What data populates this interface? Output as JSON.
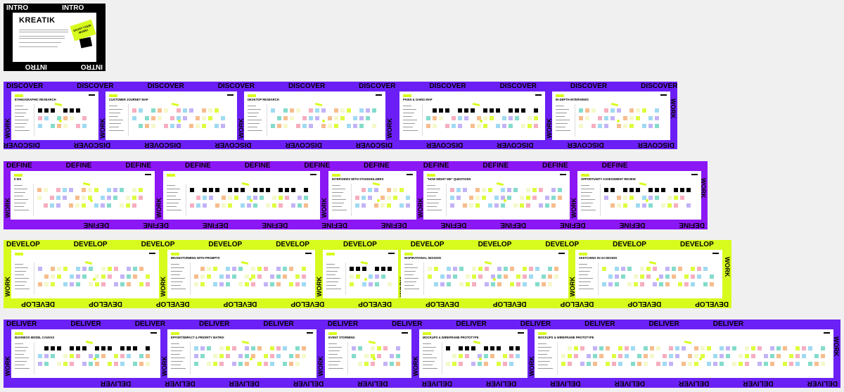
{
  "intro": {
    "band_label": "INTRO",
    "logo": "KREATIK",
    "sticker": "ENJOY YOUR WORK!"
  },
  "colors": {
    "discover": "#6b1ff5",
    "define": "#8c17f5",
    "develop": "#d8fb1e",
    "deliver": "#6b21f5",
    "accent": "#d8fb1e"
  },
  "side_label": "WORK",
  "rows": [
    {
      "label": "DISCOVER",
      "cards": [
        {
          "title": "ETHNOGRAPHIC RESEARCH"
        },
        {
          "title": "CUSTOMER JOURNEY MAP"
        },
        {
          "title": "DESKTOP RESEARCH"
        },
        {
          "title": "PAINS & GAINS MAP"
        },
        {
          "title": "IN-DEPTH INTERVIEWS"
        }
      ]
    },
    {
      "label": "DEFINE",
      "cards": [
        {
          "title": "5 WS"
        },
        {
          "title": ""
        },
        {
          "title": "INTERVIEWS WITH STAKEHOLDERS"
        },
        {
          "title": "\"HOW MIGHT WE\" QUESTIONS"
        },
        {
          "title": "OPPORTUNITY ASSESSMENT REVIEW"
        }
      ]
    },
    {
      "label": "DEVELOP",
      "cards": [
        {
          "title": ""
        },
        {
          "title": "BRAINSTORMING WITH PROMPTS"
        },
        {
          "title": ""
        },
        {
          "title": "INSPIRATIONAL SESSION"
        },
        {
          "title": "SKETCHING IN UX DESIGN"
        }
      ]
    },
    {
      "label": "DELIVER",
      "cards": [
        {
          "title": "BUSINESS MODEL CANVAS"
        },
        {
          "title": "EFFORT/IMPACT & PRIORITY MATRIX"
        },
        {
          "title": "EVENT STORMING"
        },
        {
          "title": "MOCKUPS & WIREFRAME PROTOTYPE"
        },
        {
          "title": "MOCKUPS & WIREFRAME PROTOTYPE"
        }
      ]
    }
  ]
}
